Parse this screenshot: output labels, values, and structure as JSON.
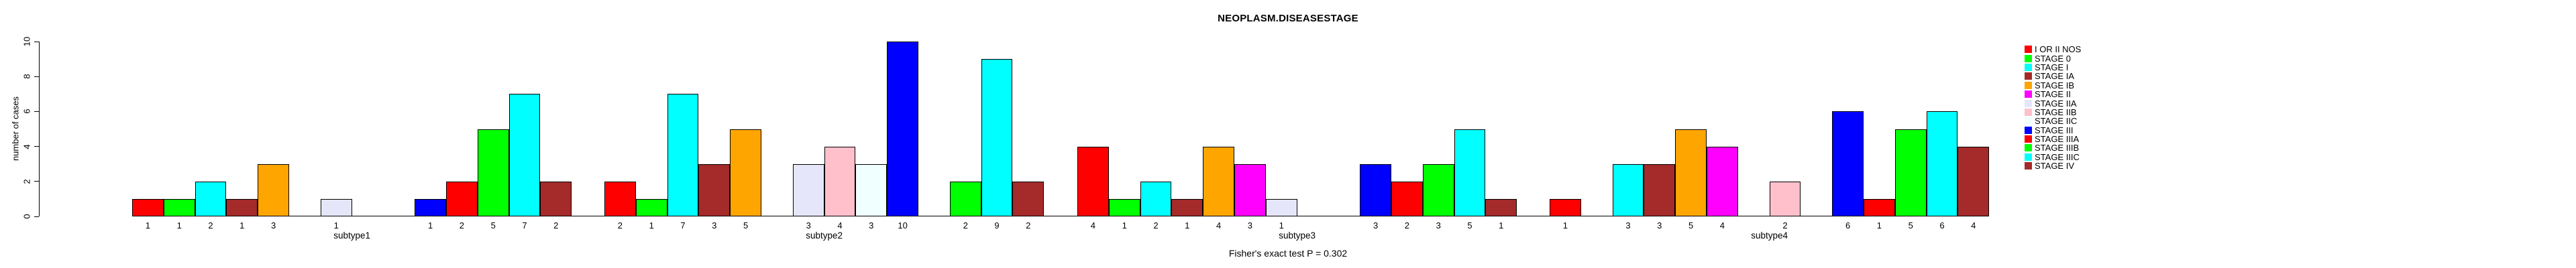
{
  "chart_data": {
    "type": "bar",
    "title": "NEOPLASM.DISEASESTAGE",
    "ylabel": "number of cases",
    "xlabel": "",
    "footer": "Fisher's exact test P = 0.302",
    "ylim": [
      0,
      10
    ],
    "yticks": [
      0,
      2,
      4,
      6,
      8,
      10
    ],
    "grid": false,
    "legend_position": "right",
    "value_labels_shown": true,
    "categories": [
      "I OR II NOS",
      "STAGE 0",
      "STAGE I",
      "STAGE IA",
      "STAGE IB",
      "STAGE II",
      "STAGE IIA",
      "STAGE IIB",
      "STAGE IIC",
      "STAGE III",
      "STAGE IIIA",
      "STAGE IIIB",
      "STAGE IIIC",
      "STAGE IV"
    ],
    "colors": [
      "#FF0000",
      "#00FF00",
      "#00FFFF",
      "#A52A2A",
      "#FFA500",
      "#FF00FF",
      "#E6E6FA",
      "#FFC0CB",
      "#F0FFFF",
      "#0000FF",
      "#FF0000",
      "#00FF00",
      "#00FFFF",
      "#A52A2A"
    ],
    "series": [
      {
        "name": "subtype1",
        "values": [
          1,
          1,
          2,
          1,
          3,
          0,
          1,
          0,
          0,
          1,
          2,
          5,
          7,
          2
        ]
      },
      {
        "name": "subtype2",
        "values": [
          2,
          1,
          7,
          3,
          5,
          0,
          3,
          4,
          3,
          10,
          0,
          2,
          9,
          2
        ]
      },
      {
        "name": "subtype3",
        "values": [
          4,
          1,
          2,
          1,
          4,
          3,
          1,
          0,
          0,
          3,
          2,
          3,
          5,
          1
        ]
      },
      {
        "name": "subtype4",
        "values": [
          1,
          0,
          3,
          3,
          5,
          4,
          0,
          2,
          0,
          6,
          1,
          5,
          6,
          4
        ]
      }
    ],
    "bar_border_color": "#000000",
    "axis_color": "#000000",
    "text_color": "#000000",
    "background_color": "#ffffff"
  }
}
